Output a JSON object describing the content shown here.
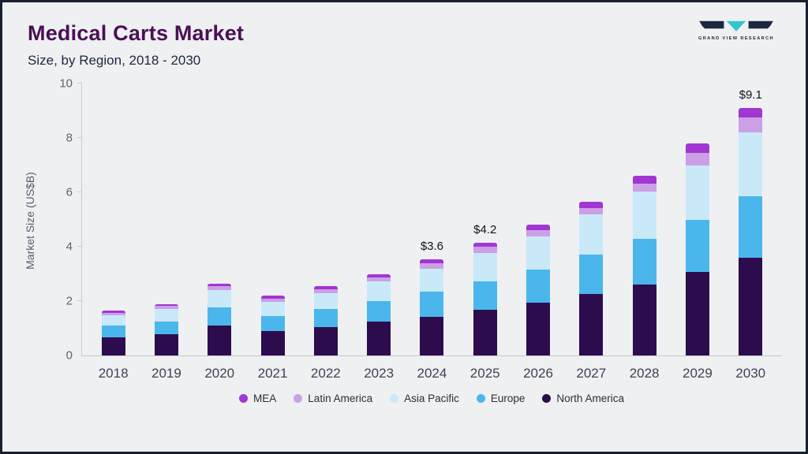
{
  "header": {
    "title": "Medical Carts Market",
    "subtitle": "Size, by Region, 2018 - 2030",
    "logo_text": "GRAND VIEW RESEARCH"
  },
  "chart_data": {
    "type": "bar",
    "stacked": true,
    "title": "Medical Carts Market Size, by Region, 2018 - 2030",
    "ylabel": "Market Size (US$B)",
    "ylim": [
      0,
      10
    ],
    "yticks": [
      0,
      2,
      4,
      6,
      8,
      10
    ],
    "categories": [
      "2018",
      "2019",
      "2020",
      "2021",
      "2022",
      "2023",
      "2024",
      "2025",
      "2026",
      "2027",
      "2028",
      "2029",
      "2030"
    ],
    "series": [
      {
        "name": "North America",
        "color": "#2d0c4e",
        "values": [
          0.68,
          0.78,
          1.1,
          0.9,
          1.05,
          1.25,
          1.42,
          1.68,
          1.95,
          2.25,
          2.62,
          3.08,
          3.6
        ]
      },
      {
        "name": "Europe",
        "color": "#4bb6ec",
        "values": [
          0.42,
          0.47,
          0.68,
          0.55,
          0.65,
          0.75,
          0.93,
          1.05,
          1.22,
          1.45,
          1.68,
          1.92,
          2.25
        ]
      },
      {
        "name": "Asia Pacific",
        "color": "#c9e9f9",
        "values": [
          0.38,
          0.45,
          0.62,
          0.52,
          0.6,
          0.72,
          0.85,
          1.05,
          1.2,
          1.5,
          1.72,
          2.0,
          2.35
        ]
      },
      {
        "name": "Latin America",
        "color": "#cc9fe6",
        "values": [
          0.1,
          0.12,
          0.14,
          0.13,
          0.14,
          0.16,
          0.2,
          0.22,
          0.24,
          0.23,
          0.3,
          0.45,
          0.55
        ]
      },
      {
        "name": "MEA",
        "color": "#a136d2",
        "values": [
          0.07,
          0.08,
          0.11,
          0.1,
          0.11,
          0.12,
          0.15,
          0.15,
          0.19,
          0.22,
          0.28,
          0.35,
          0.35
        ]
      }
    ],
    "legend": [
      "MEA",
      "Latin America",
      "Asia Pacific",
      "Europe",
      "North America"
    ],
    "annotations": {
      "2024": "$3.6",
      "2025": "$4.2",
      "2030": "$9.1"
    },
    "legend_position": "bottom",
    "grid": false
  }
}
